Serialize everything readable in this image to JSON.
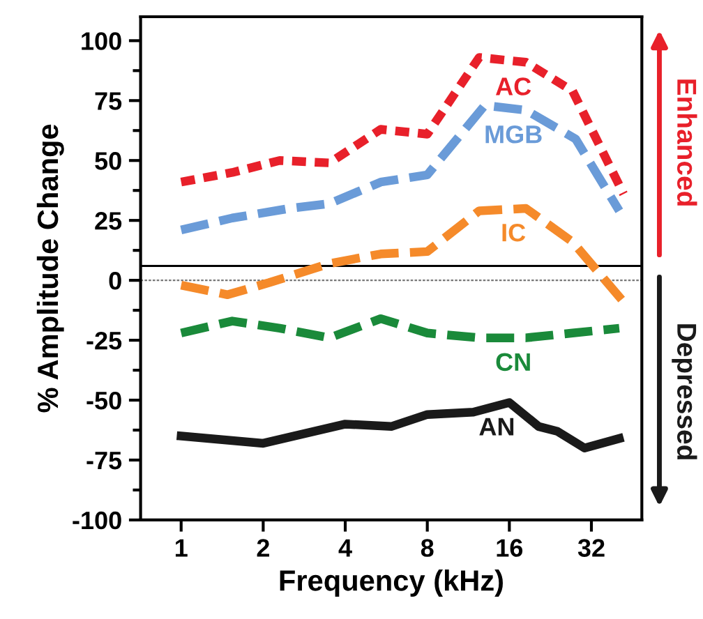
{
  "chart_data": {
    "type": "line",
    "xlabel": "Frequency (kHz)",
    "ylabel": "% Amplitude Change",
    "log": "x",
    "xlim": [
      0.71,
      49
    ],
    "xticks": [
      1,
      2,
      4,
      8,
      16,
      32
    ],
    "ylim": [
      -100,
      110
    ],
    "yticks": [
      -100,
      -75,
      -50,
      -25,
      0,
      25,
      50,
      75,
      100
    ],
    "grid": false,
    "legend": false,
    "marker": "none",
    "series": [
      {
        "name": "AC",
        "color": "#e8202a",
        "line_style": "dotted",
        "x": [
          1,
          1.54,
          2.3,
          3.5,
          5.4,
          8,
          12.4,
          18.4,
          27.3,
          42
        ],
        "values": [
          41,
          45,
          50,
          49,
          63,
          61,
          93,
          91,
          79,
          36
        ]
      },
      {
        "name": "MGB",
        "color": "#6a9bd8",
        "line_style": "dashed",
        "x": [
          1,
          1.54,
          2.5,
          3.5,
          5.4,
          8,
          13,
          18.4,
          28,
          40.5
        ],
        "values": [
          21,
          26,
          30,
          32,
          41,
          44,
          73,
          71,
          59,
          29
        ]
      },
      {
        "name": "IC",
        "color": "#f58a2a",
        "line_style": "dashed",
        "x": [
          1,
          1.48,
          2.1,
          3.5,
          5.4,
          8,
          12.4,
          18.4,
          27.3,
          42
        ],
        "values": [
          -2,
          -6,
          -1,
          7,
          11,
          12,
          29,
          30,
          16,
          -9
        ]
      },
      {
        "name": "CN",
        "color": "#1a8a3a",
        "line_style": "dashed",
        "x": [
          1,
          1.54,
          2.3,
          3.5,
          5.4,
          8,
          12.4,
          18.4,
          27.3,
          40.5
        ],
        "values": [
          -22,
          -17,
          -20,
          -24,
          -16,
          -22,
          -24,
          -24,
          -22,
          -20
        ]
      },
      {
        "name": "AN",
        "color": "#1a1a1a",
        "line_style": "solid",
        "x": [
          1,
          2,
          4,
          5.9,
          8,
          11.8,
          16,
          20.5,
          24,
          30.2,
          40.5
        ],
        "values": [
          -65,
          -68,
          -60,
          -61,
          -56,
          -55,
          -51,
          -61,
          -63,
          -70,
          -66
        ]
      }
    ],
    "ref_lines": [
      {
        "axis": "y",
        "value": 6,
        "color": "#000000",
        "line_style": "solid"
      },
      {
        "axis": "y",
        "value": 0,
        "color": "#777777",
        "line_style": "dotted"
      }
    ],
    "annotations": [
      "Enhanced",
      "Depressed"
    ]
  }
}
